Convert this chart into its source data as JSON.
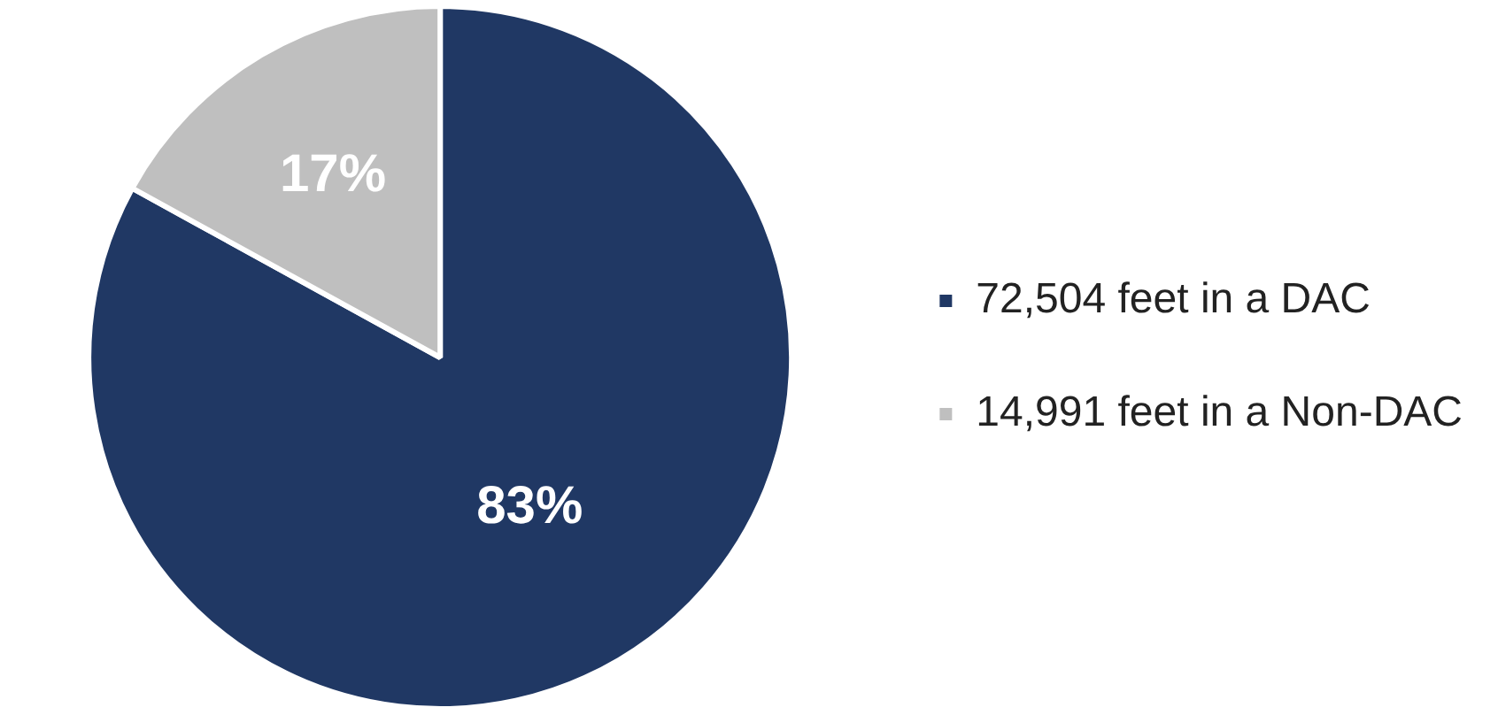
{
  "chart_data": {
    "type": "pie",
    "categories": [
      "72,504 feet in a DAC",
      "14,991 feet in a Non-DAC"
    ],
    "values": [
      83,
      17
    ],
    "colors": [
      "#203864",
      "#bfbfbf"
    ],
    "value_labels": [
      "83%",
      "17%"
    ],
    "legend": "right"
  }
}
